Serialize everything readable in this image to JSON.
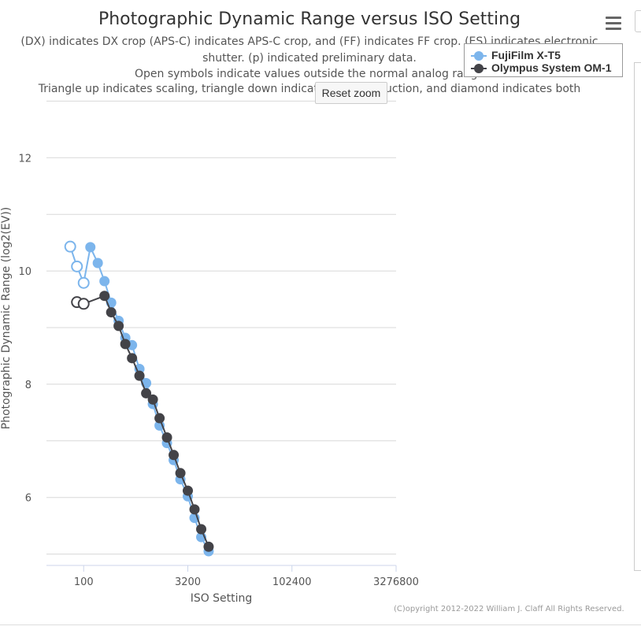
{
  "header": {
    "title": "Photographic Dynamic Range versus ISO Setting",
    "subtitle_lines": [
      "(DX) indicates DX crop (APS-C) indicates APS-C crop, and (FF) indicates FF crop. (ES) indicates electronic",
      "shutter. (p) indicated preliminary data.",
      "Open symbols indicate values outside the normal analog range",
      "Triangle up indicates scaling, triangle down indicates noise reduction, and diamond indicates both"
    ]
  },
  "controls": {
    "reset_zoom_label": "Reset zoom",
    "menu_icon": "hamburger-menu-icon"
  },
  "credits": "(C)opyright 2012-2022 William J. Claff All Rights Reserved.",
  "chart_data": {
    "type": "line",
    "xlabel": "ISO Setting",
    "ylabel": "Photographic Dynamic Range (log2(EV))",
    "x_scale": "log",
    "xlim": [
      29,
      3276800
    ],
    "ylim": [
      4.8,
      13.2
    ],
    "x_ticks": [
      {
        "value": 100,
        "label": "100"
      },
      {
        "value": 3200,
        "label": "3200"
      },
      {
        "value": 102400,
        "label": "102400"
      },
      {
        "value": 3276800,
        "label": "3276800"
      }
    ],
    "y_ticks": [
      6,
      8,
      10,
      12
    ],
    "grid": true,
    "legend_position": "top-right",
    "series": [
      {
        "name": "FujiFilm X-T5",
        "color": "#7cb5ec",
        "points": [
          {
            "x": 64,
            "y": 10.43,
            "open": true
          },
          {
            "x": 80,
            "y": 10.08,
            "open": true
          },
          {
            "x": 100,
            "y": 9.79,
            "open": true
          },
          {
            "x": 125,
            "y": 10.42,
            "open": false
          },
          {
            "x": 160,
            "y": 10.14,
            "open": false
          },
          {
            "x": 200,
            "y": 9.82,
            "open": false
          },
          {
            "x": 250,
            "y": 9.44,
            "open": false
          },
          {
            "x": 320,
            "y": 9.12,
            "open": false
          },
          {
            "x": 400,
            "y": 8.82,
            "open": false
          },
          {
            "x": 500,
            "y": 8.69,
            "open": false
          },
          {
            "x": 640,
            "y": 8.27,
            "open": false
          },
          {
            "x": 800,
            "y": 8.02,
            "open": false
          },
          {
            "x": 1000,
            "y": 7.65,
            "open": false
          },
          {
            "x": 1250,
            "y": 7.27,
            "open": false
          },
          {
            "x": 1600,
            "y": 6.96,
            "open": false
          },
          {
            "x": 2000,
            "y": 6.66,
            "open": false
          },
          {
            "x": 2500,
            "y": 6.32,
            "open": false
          },
          {
            "x": 3200,
            "y": 6.02,
            "open": false
          },
          {
            "x": 4000,
            "y": 5.64,
            "open": false
          },
          {
            "x": 5000,
            "y": 5.3,
            "open": false
          },
          {
            "x": 6400,
            "y": 5.05,
            "open": false
          }
        ]
      },
      {
        "name": "Olympus System OM-1",
        "color": "#434348",
        "points": [
          {
            "x": 80,
            "y": 9.45,
            "open": true
          },
          {
            "x": 100,
            "y": 9.42,
            "open": true
          },
          {
            "x": 200,
            "y": 9.56,
            "open": false
          },
          {
            "x": 250,
            "y": 9.27,
            "open": false
          },
          {
            "x": 320,
            "y": 9.03,
            "open": false
          },
          {
            "x": 400,
            "y": 8.71,
            "open": false
          },
          {
            "x": 500,
            "y": 8.46,
            "open": false
          },
          {
            "x": 640,
            "y": 8.15,
            "open": false
          },
          {
            "x": 800,
            "y": 7.84,
            "open": false
          },
          {
            "x": 1000,
            "y": 7.73,
            "open": false
          },
          {
            "x": 1250,
            "y": 7.4,
            "open": false
          },
          {
            "x": 1600,
            "y": 7.06,
            "open": false
          },
          {
            "x": 2000,
            "y": 6.75,
            "open": false
          },
          {
            "x": 2500,
            "y": 6.43,
            "open": false
          },
          {
            "x": 3200,
            "y": 6.12,
            "open": false
          },
          {
            "x": 4000,
            "y": 5.79,
            "open": false
          },
          {
            "x": 5000,
            "y": 5.44,
            "open": false
          },
          {
            "x": 6400,
            "y": 5.13,
            "open": false
          }
        ]
      }
    ]
  }
}
